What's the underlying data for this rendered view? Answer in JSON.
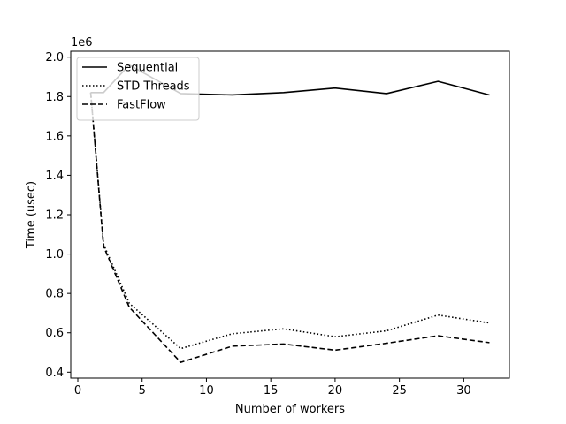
{
  "chart_data": {
    "type": "line",
    "xlabel": "Number of workers",
    "ylabel": "Time (usec)",
    "y_offset_label": "1e6",
    "xlim": [
      -0.55,
      33.55
    ],
    "ylim": [
      0.37,
      2.03
    ],
    "xticks": [
      0,
      5,
      10,
      15,
      20,
      25,
      30
    ],
    "xtick_labels": [
      "0",
      "5",
      "10",
      "15",
      "20",
      "25",
      "30"
    ],
    "yticks": [
      0.4,
      0.6,
      0.8,
      1.0,
      1.2,
      1.4,
      1.6,
      1.8,
      2.0
    ],
    "ytick_labels": [
      "0.4",
      "0.6",
      "0.8",
      "1.0",
      "1.2",
      "1.4",
      "1.6",
      "1.8",
      "2.0"
    ],
    "grid": false,
    "legend_position": "top-left",
    "series": [
      {
        "name": "Sequential",
        "style": "solid",
        "color": "#000000",
        "x": [
          1,
          2,
          4,
          8,
          12,
          16,
          20,
          24,
          28,
          32
        ],
        "y": [
          1.82,
          1.82,
          1.96,
          1.815,
          1.808,
          1.82,
          1.843,
          1.815,
          1.877,
          1.808
        ]
      },
      {
        "name": "STD Threads",
        "style": "dotted",
        "color": "#000000",
        "x": [
          1,
          2,
          4,
          8,
          12,
          16,
          20,
          24,
          28,
          32
        ],
        "y": [
          1.82,
          1.05,
          0.75,
          0.52,
          0.595,
          0.62,
          0.58,
          0.61,
          0.69,
          0.65
        ]
      },
      {
        "name": "FastFlow",
        "style": "dashed",
        "color": "#000000",
        "x": [
          1,
          2,
          4,
          8,
          12,
          16,
          20,
          24,
          28,
          32
        ],
        "y": [
          1.82,
          1.04,
          0.73,
          0.45,
          0.532,
          0.543,
          0.512,
          0.547,
          0.585,
          0.55
        ]
      }
    ]
  }
}
